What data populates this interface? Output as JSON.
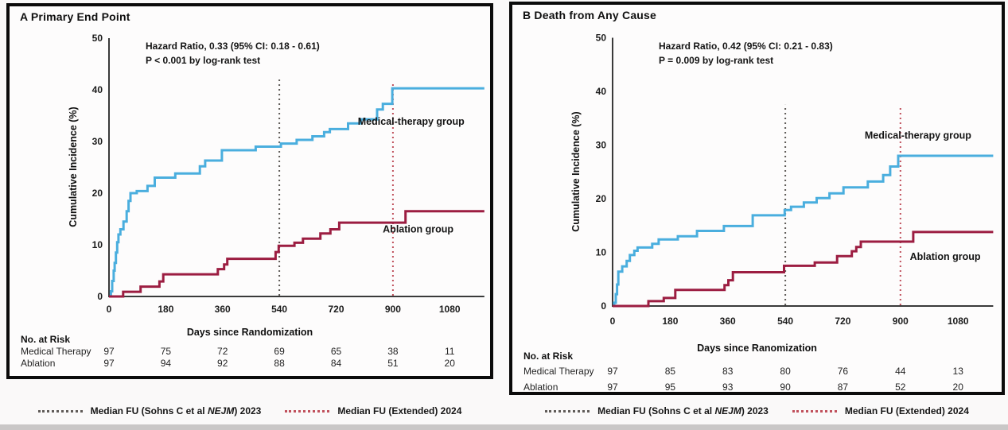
{
  "chart_data": [
    {
      "type": "line",
      "subtype": "step-cumulative-incidence",
      "title": "A Primary End Point",
      "annotation": [
        "Hazard Ratio, 0.33 (95% CI: 0.18 - 0.61)",
        "P < 0.001 by log-rank test"
      ],
      "xlabel": "Days since Randomization",
      "ylabel": "Cumulative Incidence (%)",
      "x_ticks": [
        0,
        180,
        360,
        540,
        720,
        900,
        1080
      ],
      "y_ticks": [
        0,
        10,
        20,
        30,
        40,
        50
      ],
      "xlim": [
        0,
        1190
      ],
      "ylim": [
        0,
        50
      ],
      "grid": false,
      "series": [
        {
          "name": "Medical-therapy group",
          "color": "#4aaede",
          "label_at": [
            958,
            33.2
          ],
          "steps": [
            [
              6,
              1
            ],
            [
              10,
              3
            ],
            [
              15,
              5
            ],
            [
              18,
              6.5
            ],
            [
              22,
              8.5
            ],
            [
              26,
              10.5
            ],
            [
              30,
              12
            ],
            [
              36,
              13
            ],
            [
              46,
              14.5
            ],
            [
              56,
              16.5
            ],
            [
              62,
              18.5
            ],
            [
              68,
              20
            ],
            [
              88,
              20.4
            ],
            [
              122,
              21.4
            ],
            [
              145,
              23
            ],
            [
              210,
              23.8
            ],
            [
              288,
              25.2
            ],
            [
              305,
              26.3
            ],
            [
              358,
              28.3
            ],
            [
              465,
              29
            ],
            [
              545,
              29.6
            ],
            [
              595,
              30.3
            ],
            [
              645,
              31
            ],
            [
              682,
              31.8
            ],
            [
              700,
              32.4
            ],
            [
              758,
              33.5
            ],
            [
              798,
              34.3
            ],
            [
              850,
              36.2
            ],
            [
              868,
              37.3
            ],
            [
              898,
              40.3
            ]
          ]
        },
        {
          "name": "Ablation group",
          "color": "#9c1d41",
          "label_at": [
            980,
            12.4
          ],
          "steps": [
            [
              45,
              0.9
            ],
            [
              100,
              1.9
            ],
            [
              160,
              2.9
            ],
            [
              172,
              4.3
            ],
            [
              345,
              5.3
            ],
            [
              365,
              6.2
            ],
            [
              375,
              7.3
            ],
            [
              528,
              8.6
            ],
            [
              538,
              9.8
            ],
            [
              588,
              10.4
            ],
            [
              615,
              11.2
            ],
            [
              670,
              12.2
            ],
            [
              702,
              13
            ],
            [
              730,
              14.3
            ],
            [
              940,
              16.5
            ]
          ]
        }
      ],
      "vlines": [
        {
          "name": "median-fu-2023-line",
          "day": 540,
          "top": 42.5,
          "color": "#5f5b58"
        },
        {
          "name": "median-fu-2024-line",
          "day": 900,
          "top": 41.5,
          "color": "#c0505c"
        }
      ],
      "risk_table": {
        "header": "No. at Risk",
        "rows": [
          {
            "label": "Medical Therapy",
            "values": [
              97,
              75,
              72,
              69,
              65,
              38,
              11
            ]
          },
          {
            "label": "Ablation",
            "values": [
              97,
              94,
              92,
              88,
              84,
              51,
              20
            ]
          }
        ]
      }
    },
    {
      "type": "line",
      "subtype": "step-cumulative-incidence",
      "title": "B Death from Any Cause",
      "annotation": [
        "Hazard Ratio, 0.42 (95% CI: 0.21 - 0.83)",
        "P = 0.009 by log-rank test"
      ],
      "xlabel": "Days since Ranomization",
      "ylabel": "Cumulative Incidence (%)",
      "x_ticks": [
        0,
        180,
        360,
        540,
        720,
        900,
        1080
      ],
      "y_ticks": [
        0,
        10,
        20,
        30,
        40,
        50
      ],
      "xlim": [
        0,
        1190
      ],
      "ylim": [
        0,
        50
      ],
      "grid": false,
      "series": [
        {
          "name": "Medical-therapy group",
          "color": "#4aaede",
          "label_at": [
            955,
            31.2
          ],
          "steps": [
            [
              5,
              0.6
            ],
            [
              10,
              2.2
            ],
            [
              14,
              4
            ],
            [
              18,
              6.4
            ],
            [
              30,
              7.4
            ],
            [
              44,
              8.4
            ],
            [
              54,
              9.5
            ],
            [
              68,
              10.3
            ],
            [
              78,
              10.9
            ],
            [
              124,
              11.6
            ],
            [
              144,
              12.4
            ],
            [
              204,
              13
            ],
            [
              264,
              14
            ],
            [
              348,
              14.9
            ],
            [
              438,
              16.9
            ],
            [
              538,
              17.9
            ],
            [
              558,
              18.5
            ],
            [
              598,
              19.3
            ],
            [
              638,
              20.1
            ],
            [
              678,
              21
            ],
            [
              722,
              22.1
            ],
            [
              798,
              23.2
            ],
            [
              846,
              24.4
            ],
            [
              868,
              26
            ],
            [
              893,
              28
            ]
          ]
        },
        {
          "name": "Ablation group",
          "color": "#9c1d41",
          "label_at": [
            1040,
            8.6
          ],
          "steps": [
            [
              112,
              0.9
            ],
            [
              160,
              1.5
            ],
            [
              196,
              3
            ],
            [
              350,
              3.9
            ],
            [
              362,
              4.8
            ],
            [
              376,
              6.3
            ],
            [
              536,
              7.5
            ],
            [
              632,
              8.1
            ],
            [
              702,
              9.3
            ],
            [
              748,
              10.2
            ],
            [
              762,
              11
            ],
            [
              776,
              12
            ],
            [
              940,
              13.8
            ]
          ]
        }
      ],
      "vlines": [
        {
          "name": "median-fu-2023-line",
          "day": 540,
          "top": 37.5,
          "color": "#5f5b58"
        },
        {
          "name": "median-fu-2024-line",
          "day": 900,
          "top": 37,
          "color": "#c0505c"
        }
      ],
      "risk_table": {
        "header": "No. at Risk",
        "rows": [
          {
            "label": "Medical Therapy",
            "values": [
              97,
              85,
              83,
              80,
              76,
              44,
              13
            ]
          },
          {
            "label": "Ablation",
            "values": [
              97,
              95,
              93,
              90,
              87,
              52,
              20
            ]
          }
        ]
      }
    }
  ],
  "legend": {
    "items": [
      {
        "name": "median-fu-sohns-2023",
        "swatch_color": "#5f5b58",
        "text_prefix": "Median FU (Sohns C et al ",
        "text_italic": "NEJM",
        "text_suffix": ") 2023"
      },
      {
        "name": "median-fu-extended-2024",
        "swatch_color": "#c0505c",
        "text_prefix": "Median FU (Extended) 2024",
        "text_italic": "",
        "text_suffix": ""
      }
    ]
  },
  "colors": {
    "curve_blue": "#4aaede",
    "curve_red": "#9c1d41",
    "axis": "#3a3a3a",
    "panel_border": "#0b0b0b",
    "page_bg": "#faf9f9",
    "bottom_strip": "#c9c7c7"
  }
}
